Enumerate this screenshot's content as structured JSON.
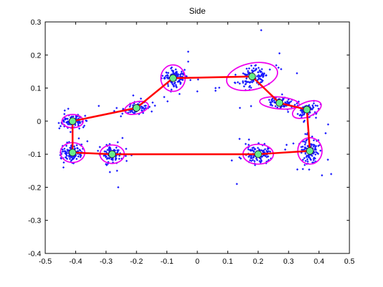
{
  "chart_data": {
    "type": "scatter",
    "title": "Side",
    "xlabel": "",
    "ylabel": "",
    "xlim": [
      -0.5,
      0.5
    ],
    "ylim": [
      -0.4,
      0.3
    ],
    "x_ticks": [
      -0.5,
      -0.4,
      -0.3,
      -0.2,
      -0.1,
      0,
      0.1,
      0.2,
      0.3,
      0.4,
      0.5
    ],
    "x_tick_labels": [
      "-0.5",
      "-0.4",
      "-0.3",
      "-0.2",
      "-0.1",
      "0",
      "0.1",
      "0.2",
      "0.3",
      "0.4",
      "0.5"
    ],
    "y_ticks": [
      -0.4,
      -0.3,
      -0.2,
      -0.1,
      0,
      0.1,
      0.2,
      0.3
    ],
    "y_tick_labels": [
      "-0.4",
      "-0.3",
      "-0.2",
      "-0.1",
      "0",
      "0.1",
      "0.2",
      "0.3"
    ],
    "grid": false,
    "legend": "none",
    "colors": {
      "points": "#1a1aff",
      "ellipses": "#ee00ee",
      "path": "#ff0000",
      "centers_fill": "#66ee88",
      "centers_edge": "#222222"
    },
    "clusters": [
      {
        "cx": -0.41,
        "cy": 0.0,
        "rx": 0.035,
        "ry": 0.02,
        "angle_deg": 0,
        "spread_x": 0.025,
        "spread_y": 0.012,
        "n": 110
      },
      {
        "cx": -0.2,
        "cy": 0.04,
        "rx": 0.04,
        "ry": 0.018,
        "angle_deg": 15,
        "spread_x": 0.03,
        "spread_y": 0.012,
        "n": 90
      },
      {
        "cx": -0.08,
        "cy": 0.13,
        "rx": 0.04,
        "ry": 0.04,
        "angle_deg": 0,
        "spread_x": 0.025,
        "spread_y": 0.022,
        "n": 110
      },
      {
        "cx": 0.18,
        "cy": 0.135,
        "rx": 0.085,
        "ry": 0.04,
        "angle_deg": 12,
        "spread_x": 0.04,
        "spread_y": 0.018,
        "n": 120
      },
      {
        "cx": 0.27,
        "cy": 0.055,
        "rx": 0.065,
        "ry": 0.018,
        "angle_deg": -5,
        "spread_x": 0.035,
        "spread_y": 0.012,
        "n": 90
      },
      {
        "cx": 0.36,
        "cy": 0.035,
        "rx": 0.05,
        "ry": 0.022,
        "angle_deg": 22,
        "spread_x": 0.025,
        "spread_y": 0.012,
        "n": 80
      },
      {
        "cx": 0.37,
        "cy": -0.09,
        "rx": 0.04,
        "ry": 0.04,
        "angle_deg": 0,
        "spread_x": 0.022,
        "spread_y": 0.025,
        "n": 130
      },
      {
        "cx": 0.2,
        "cy": -0.1,
        "rx": 0.05,
        "ry": 0.03,
        "angle_deg": 0,
        "spread_x": 0.028,
        "spread_y": 0.018,
        "n": 130
      },
      {
        "cx": -0.28,
        "cy": -0.1,
        "rx": 0.04,
        "ry": 0.028,
        "angle_deg": 0,
        "spread_x": 0.02,
        "spread_y": 0.016,
        "n": 110
      },
      {
        "cx": -0.41,
        "cy": -0.095,
        "rx": 0.04,
        "ry": 0.03,
        "angle_deg": 0,
        "spread_x": 0.022,
        "spread_y": 0.018,
        "n": 120
      }
    ],
    "centers": [
      {
        "x": -0.41,
        "y": 0.0
      },
      {
        "x": -0.2,
        "y": 0.04
      },
      {
        "x": -0.08,
        "y": 0.13
      },
      {
        "x": 0.18,
        "y": 0.135
      },
      {
        "x": 0.27,
        "y": 0.055
      },
      {
        "x": 0.36,
        "y": 0.035
      },
      {
        "x": 0.37,
        "y": -0.09
      },
      {
        "x": 0.2,
        "y": -0.1
      },
      {
        "x": -0.28,
        "y": -0.1
      },
      {
        "x": -0.41,
        "y": -0.095
      }
    ],
    "path_segments": [
      [
        [
          -0.41,
          0.0
        ],
        [
          -0.2,
          0.04
        ]
      ],
      [
        [
          -0.2,
          0.04
        ],
        [
          -0.08,
          0.13
        ]
      ],
      [
        [
          -0.08,
          0.13
        ],
        [
          0.18,
          0.135
        ]
      ],
      [
        [
          0.18,
          0.135
        ],
        [
          0.27,
          0.055
        ]
      ],
      [
        [
          0.27,
          0.055
        ],
        [
          0.36,
          0.035
        ]
      ],
      [
        [
          0.36,
          0.035
        ],
        [
          0.37,
          -0.09
        ]
      ],
      [
        [
          0.37,
          -0.09
        ],
        [
          0.2,
          -0.1
        ]
      ],
      [
        [
          0.2,
          -0.1
        ],
        [
          -0.28,
          -0.1
        ]
      ],
      [
        [
          -0.28,
          -0.1
        ],
        [
          -0.41,
          -0.095
        ]
      ],
      [
        [
          -0.41,
          -0.095
        ],
        [
          -0.41,
          0.0
        ]
      ]
    ],
    "outliers": [
      {
        "x": 0.21,
        "y": 0.275
      },
      {
        "x": -0.03,
        "y": 0.21
      },
      {
        "x": 0.27,
        "y": 0.205
      },
      {
        "x": -0.26,
        "y": -0.2
      },
      {
        "x": 0.13,
        "y": -0.19
      },
      {
        "x": -0.44,
        "y": -0.14
      },
      {
        "x": 0.44,
        "y": -0.16
      },
      {
        "x": 0.43,
        "y": -0.01
      },
      {
        "x": 0.0,
        "y": 0.09
      },
      {
        "x": 0.14,
        "y": 0.04
      },
      {
        "x": 0.06,
        "y": 0.1
      },
      {
        "x": -0.03,
        "y": 0.18
      }
    ]
  }
}
